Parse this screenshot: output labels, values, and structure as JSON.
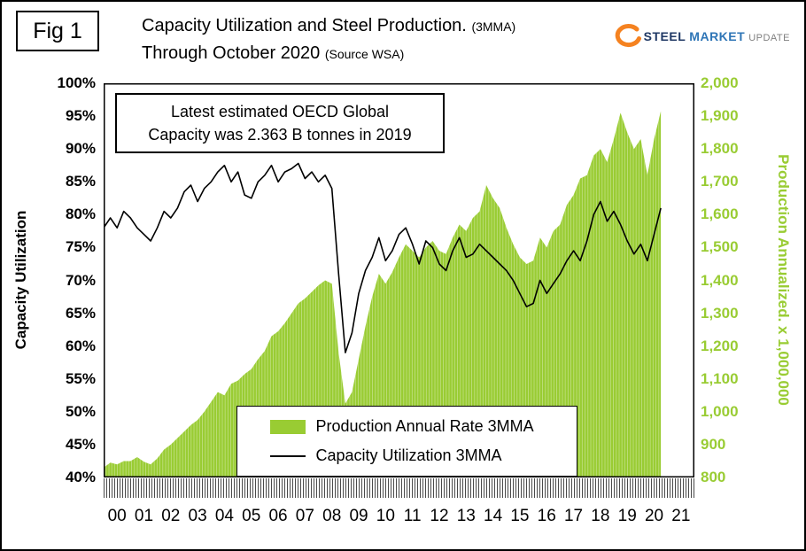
{
  "header": {
    "fig_label": "Fig 1",
    "title_main": "Capacity Utilization and Steel Production.",
    "title_main_suffix": "(3MMA)",
    "title_line2": "Through October 2020",
    "title_line2_suffix": "(Source WSA)"
  },
  "logo": {
    "word1": "STEEL",
    "word2": "MARKET",
    "word3": "UPDATE"
  },
  "annotation": {
    "line1": "Latest estimated OECD Global",
    "line2": "Capacity was 2.363 B tonnes in 2019"
  },
  "colors": {
    "production_green": "#99CC33",
    "line_black": "#000000",
    "logo_navy": "#1F3864",
    "logo_blue": "#2E75B6",
    "logo_gray": "#7F7F7F",
    "logo_orange": "#F58220"
  },
  "chart_data": {
    "type": "area+line",
    "title": "Capacity Utilization and Steel Production. (3MMA) Through October 2020 (Source WSA)",
    "ylabel_left": "Capacity Utilization",
    "ylabel_right": "Production Annualized. x 1,000,000",
    "x_range": [
      2000,
      2022
    ],
    "last_point": "October 2020",
    "grid": "off",
    "legend_position": "bottom-center-inside",
    "left_axis": {
      "min": 40,
      "max": 100,
      "unit": "%",
      "ticks": [
        "100%",
        "95%",
        "90%",
        "85%",
        "80%",
        "75%",
        "70%",
        "65%",
        "60%",
        "55%",
        "50%",
        "45%",
        "40%"
      ]
    },
    "right_axis": {
      "min": 800,
      "max": 2000,
      "ticks": [
        "2,000",
        "1,900",
        "1,800",
        "1,700",
        "1,600",
        "1,500",
        "1,400",
        "1,300",
        "1,200",
        "1,100",
        "1,000",
        "900",
        "800"
      ]
    },
    "x_labels": [
      "00",
      "01",
      "02",
      "03",
      "04",
      "05",
      "06",
      "07",
      "08",
      "09",
      "10",
      "11",
      "12",
      "13",
      "14",
      "15",
      "16",
      "17",
      "18",
      "19",
      "20",
      "21"
    ],
    "x": [
      2000,
      2000.25,
      2000.5,
      2000.75,
      2001,
      2001.25,
      2001.5,
      2001.75,
      2002,
      2002.25,
      2002.5,
      2002.75,
      2003,
      2003.25,
      2003.5,
      2003.75,
      2004,
      2004.25,
      2004.5,
      2004.75,
      2005,
      2005.25,
      2005.5,
      2005.75,
      2006,
      2006.25,
      2006.5,
      2006.75,
      2007,
      2007.25,
      2007.5,
      2007.75,
      2008,
      2008.25,
      2008.5,
      2008.75,
      2009,
      2009.25,
      2009.5,
      2009.75,
      2010,
      2010.25,
      2010.5,
      2010.75,
      2011,
      2011.25,
      2011.5,
      2011.75,
      2012,
      2012.25,
      2012.5,
      2012.75,
      2013,
      2013.25,
      2013.5,
      2013.75,
      2014,
      2014.25,
      2014.5,
      2014.75,
      2015,
      2015.25,
      2015.5,
      2015.75,
      2016,
      2016.25,
      2016.5,
      2016.75,
      2017,
      2017.25,
      2017.5,
      2017.75,
      2018,
      2018.25,
      2018.5,
      2018.75,
      2019,
      2019.25,
      2019.5,
      2019.75,
      2020,
      2020.25,
      2020.5,
      2020.75
    ],
    "series": [
      {
        "name": "Production Annual Rate 3MMA",
        "axis": "right",
        "style": "area",
        "color": "#99CC33",
        "values": [
          830,
          845,
          840,
          850,
          850,
          862,
          848,
          840,
          858,
          885,
          900,
          920,
          940,
          960,
          975,
          1000,
          1030,
          1060,
          1050,
          1085,
          1095,
          1115,
          1130,
          1160,
          1185,
          1230,
          1245,
          1270,
          1300,
          1330,
          1345,
          1365,
          1385,
          1400,
          1390,
          1180,
          1025,
          1060,
          1160,
          1260,
          1350,
          1420,
          1390,
          1425,
          1470,
          1510,
          1490,
          1470,
          1500,
          1520,
          1490,
          1480,
          1530,
          1570,
          1550,
          1590,
          1610,
          1690,
          1650,
          1620,
          1560,
          1510,
          1470,
          1450,
          1460,
          1530,
          1500,
          1550,
          1570,
          1630,
          1660,
          1710,
          1720,
          1780,
          1800,
          1760,
          1830,
          1910,
          1850,
          1800,
          1830,
          1720,
          1830,
          1915
        ]
      },
      {
        "name": "Capacity Utilization 3MMA",
        "axis": "left",
        "style": "line",
        "color": "#000000",
        "values": [
          78.0,
          79.5,
          78.0,
          80.5,
          79.5,
          78.0,
          77.0,
          76.0,
          78.0,
          80.5,
          79.5,
          81.0,
          83.5,
          84.5,
          82.0,
          84.0,
          85.0,
          86.5,
          87.5,
          85.0,
          86.5,
          83.0,
          82.5,
          85.0,
          86.0,
          87.5,
          85.0,
          86.5,
          87.0,
          87.8,
          85.5,
          86.5,
          85.0,
          86.0,
          84.0,
          71.0,
          59.0,
          62.0,
          68.0,
          71.5,
          73.5,
          76.5,
          73.0,
          74.5,
          77.0,
          78.0,
          75.5,
          72.5,
          76.0,
          75.0,
          72.5,
          71.5,
          74.5,
          76.5,
          73.5,
          74.0,
          75.5,
          74.5,
          73.5,
          72.5,
          71.5,
          70.0,
          68.0,
          66.0,
          66.5,
          70.0,
          68.0,
          69.5,
          71.0,
          73.0,
          74.5,
          73.0,
          76.0,
          80.0,
          82.0,
          79.0,
          80.5,
          78.5,
          76.0,
          74.0,
          75.5,
          73.0,
          77.0,
          81.0
        ]
      }
    ]
  }
}
